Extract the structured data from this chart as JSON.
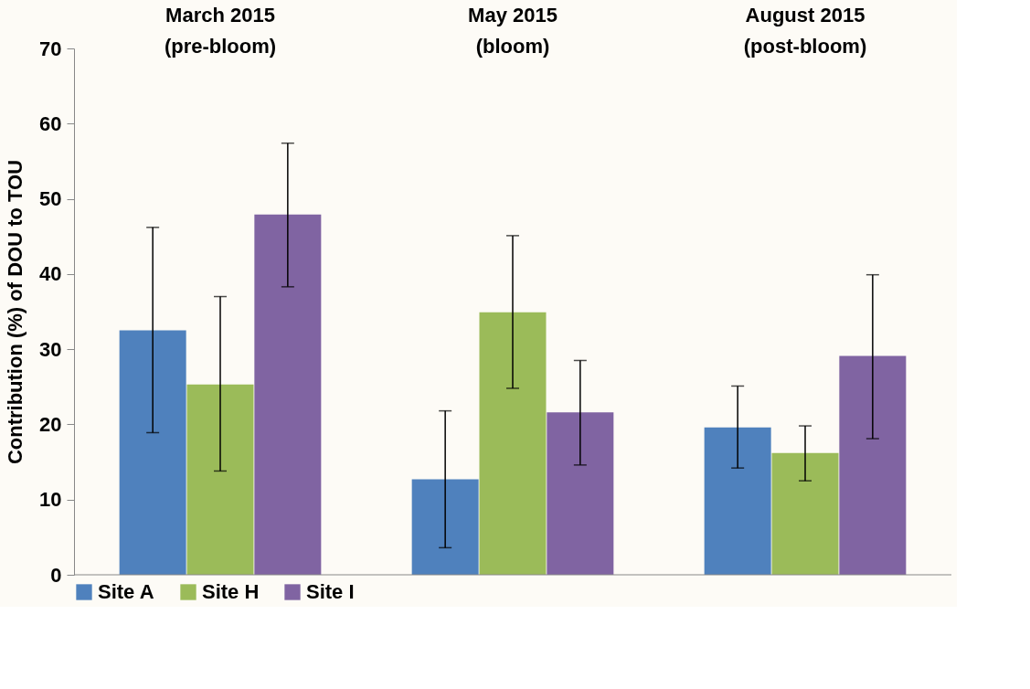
{
  "chart_data": {
    "type": "bar",
    "categories": [
      "March 2015\n(pre-bloom)",
      "May 2015\n(bloom)",
      "August 2015\n(post-bloom)"
    ],
    "ylabel": "Contribution (%) of DOU to TOU",
    "ylim": [
      0,
      70
    ],
    "yticks": [
      0,
      10,
      20,
      30,
      40,
      50,
      60,
      70
    ],
    "grid": false,
    "legend": "bottom",
    "series": [
      {
        "name": "Site A",
        "color": "#4f81bd",
        "values": [
          32.5,
          12.7,
          19.6
        ],
        "errors": [
          [
            18.9,
            46.2
          ],
          [
            3.6,
            21.8
          ],
          [
            14.2,
            25.1
          ]
        ]
      },
      {
        "name": "Site H",
        "color": "#9bbb59",
        "values": [
          25.3,
          34.9,
          16.2
        ],
        "errors": [
          [
            13.8,
            37.0
          ],
          [
            24.8,
            45.1
          ],
          [
            12.5,
            19.8
          ]
        ]
      },
      {
        "name": "Site I",
        "color": "#8064a2",
        "values": [
          47.9,
          21.6,
          29.1
        ],
        "errors": [
          [
            38.3,
            57.4
          ],
          [
            14.6,
            28.5
          ],
          [
            18.1,
            39.9
          ]
        ]
      }
    ]
  }
}
